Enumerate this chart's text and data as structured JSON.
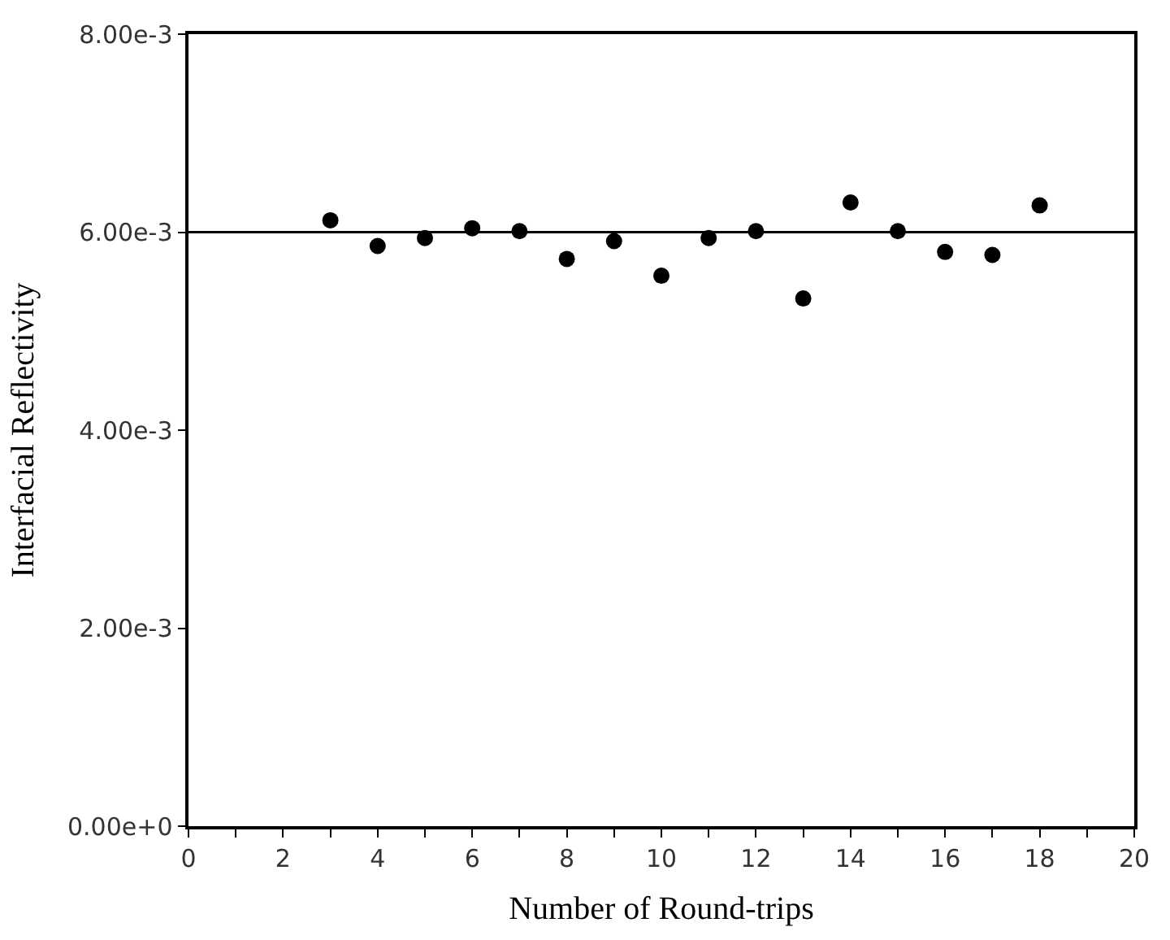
{
  "chart_data": {
    "type": "scatter",
    "xlabel": "Number of Round-trips",
    "ylabel": "Interfacial Reflectivity",
    "x": [
      3,
      4,
      5,
      6,
      7,
      8,
      9,
      10,
      11,
      12,
      13,
      14,
      15,
      16,
      17,
      18
    ],
    "values": [
      0.00612,
      0.00586,
      0.00594,
      0.00604,
      0.00601,
      0.00573,
      0.00591,
      0.00556,
      0.00594,
      0.00601,
      0.00533,
      0.0063,
      0.00601,
      0.0058,
      0.00577,
      0.00627
    ],
    "color": "#000000",
    "marker": "circle",
    "xlim": [
      0,
      20
    ],
    "xticks": [
      0,
      {
        "value": 1,
        "label": null
      },
      2,
      {
        "value": 3,
        "label": null
      },
      4,
      {
        "value": 5,
        "label": null
      },
      6,
      {
        "value": 7,
        "label": null
      },
      8,
      {
        "value": 9,
        "label": null
      },
      10,
      {
        "value": 11,
        "label": null
      },
      12,
      {
        "value": 13,
        "label": null
      },
      14,
      {
        "value": 15,
        "label": null
      },
      16,
      {
        "value": 17,
        "label": null
      },
      18,
      {
        "value": 19,
        "label": null
      },
      20
    ],
    "ylim": [
      0,
      0.008
    ],
    "yticks": [
      {
        "value": 0,
        "label": "0.00e+0"
      },
      {
        "value": 0.002,
        "label": "2.00e-3"
      },
      {
        "value": 0.004,
        "label": "4.00e-3"
      },
      {
        "value": 0.006,
        "label": "6.00e-3"
      },
      {
        "value": 0.008,
        "label": "8.00e-3"
      }
    ],
    "ref_lines": [
      {
        "axis": "y",
        "value": 0.006,
        "color": "#000000",
        "line_style": "solid"
      }
    ]
  }
}
